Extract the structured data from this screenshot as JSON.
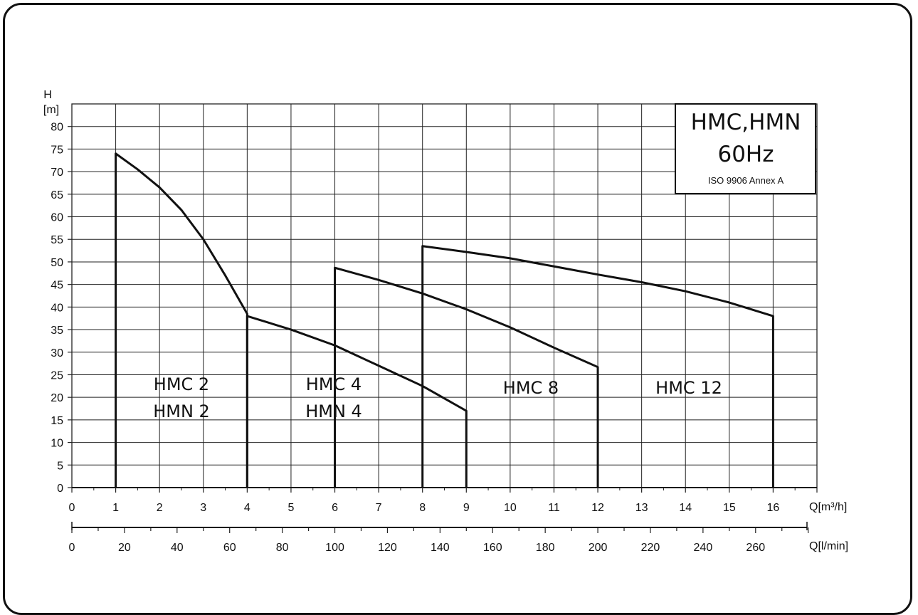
{
  "chart_data": {
    "type": "line",
    "title_box": {
      "line1": "HMC,HMN",
      "line2": "60Hz",
      "line3": "ISO 9906 Annex A"
    },
    "y_axis": {
      "label_top": "H",
      "label_unit": "[m]",
      "range": [
        0,
        85
      ],
      "ticks": [
        0,
        5,
        10,
        15,
        20,
        25,
        30,
        35,
        40,
        45,
        50,
        55,
        60,
        65,
        70,
        75,
        80
      ]
    },
    "x_axis": {
      "label": "Q[m³/h]",
      "range": [
        0,
        17
      ],
      "ticks": [
        0,
        1,
        2,
        3,
        4,
        5,
        6,
        7,
        8,
        9,
        10,
        11,
        12,
        13,
        14,
        15,
        16
      ]
    },
    "x_axis_secondary": {
      "label": "Q[l/min]",
      "range": [
        0,
        283.33
      ],
      "ticks": [
        0,
        20,
        40,
        60,
        80,
        100,
        120,
        140,
        160,
        180,
        200,
        220,
        240,
        260
      ]
    },
    "grid": true,
    "series": [
      {
        "labels": [
          "HMC 2",
          "HMN 2"
        ],
        "curve": [
          [
            1,
            74
          ],
          [
            1.5,
            70.5
          ],
          [
            2,
            66.5
          ],
          [
            2.5,
            61.5
          ],
          [
            3,
            55
          ],
          [
            3.5,
            47
          ],
          [
            4,
            38.5
          ]
        ],
        "q_min": 1,
        "q_max": 4
      },
      {
        "labels": [
          "HMC 4",
          "HMN 4"
        ],
        "curve": [
          [
            4,
            38
          ],
          [
            5,
            35
          ],
          [
            6,
            31.5
          ],
          [
            7,
            27
          ],
          [
            8,
            22.5
          ],
          [
            9,
            17
          ]
        ],
        "q_min": 4,
        "q_max": 9
      },
      {
        "labels": [
          "HMC 8"
        ],
        "curve": [
          [
            6,
            48.7
          ],
          [
            7,
            46
          ],
          [
            8,
            43
          ],
          [
            9,
            39.5
          ],
          [
            10,
            35.5
          ],
          [
            11,
            31
          ],
          [
            12,
            26.7
          ]
        ],
        "q_min": 6,
        "q_max": 12
      },
      {
        "labels": [
          "HMC 12"
        ],
        "curve": [
          [
            8,
            53.5
          ],
          [
            9,
            52.2
          ],
          [
            10,
            50.8
          ],
          [
            11,
            49
          ],
          [
            12,
            47.2
          ],
          [
            13,
            45.5
          ],
          [
            14,
            43.5
          ],
          [
            15,
            41
          ],
          [
            16,
            38
          ]
        ],
        "q_min": 8,
        "q_max": 16
      }
    ],
    "colors": {
      "line": "#111111",
      "grid": "#222222",
      "background": "#ffffff"
    }
  }
}
